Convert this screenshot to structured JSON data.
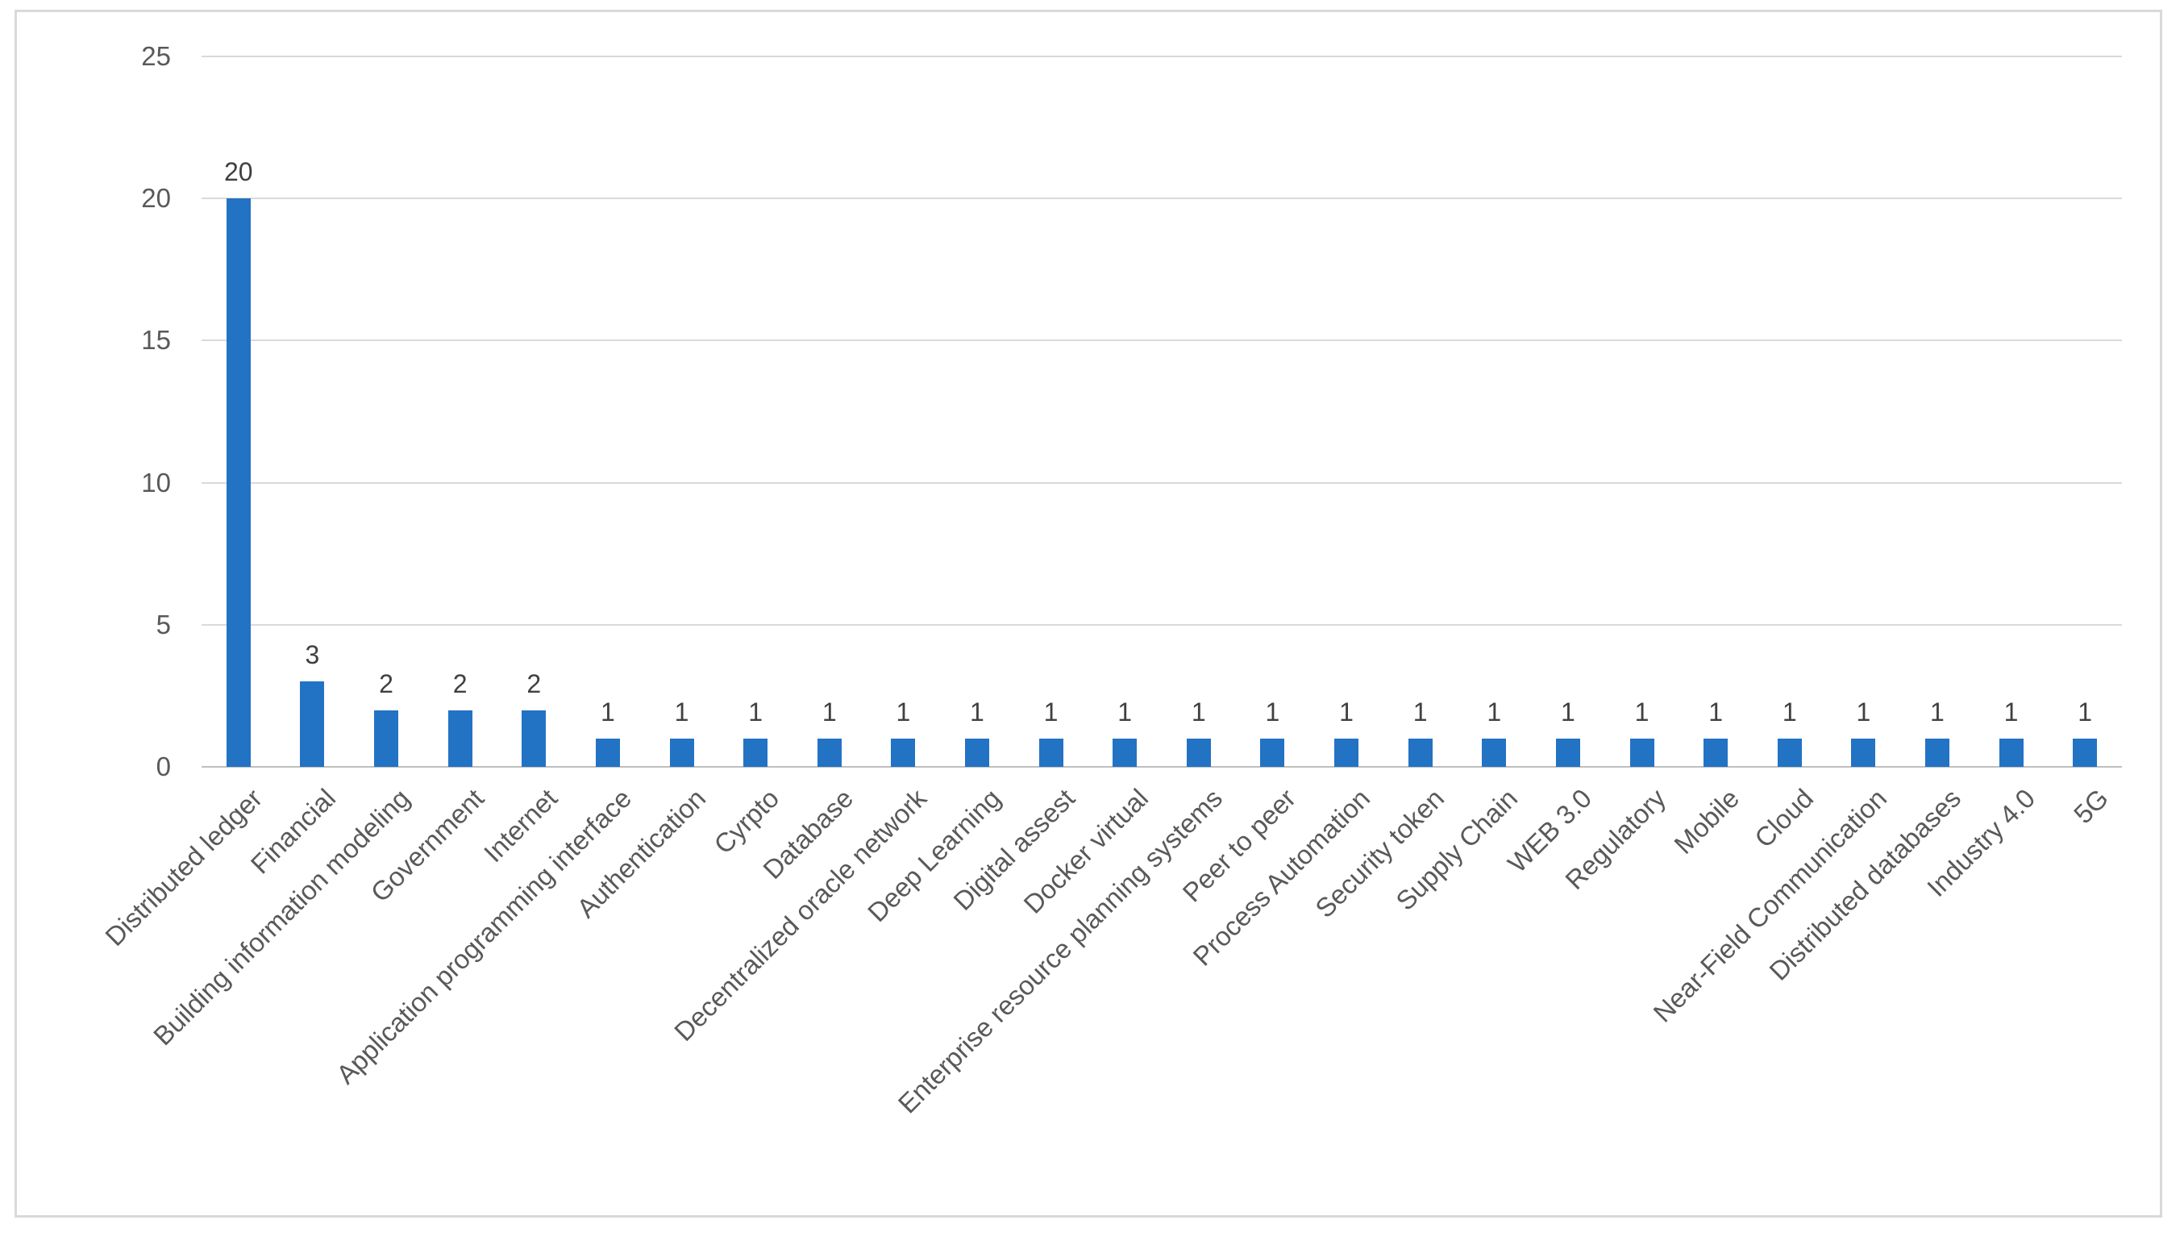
{
  "figure": {
    "background_color": "#ffffff",
    "border_color": "#d9d9d9"
  },
  "chart_data": {
    "type": "bar",
    "title": "",
    "xlabel": "",
    "ylabel": "",
    "legend": "none",
    "grid": true,
    "data_labels_shown": true,
    "ylim": [
      0,
      25
    ],
    "yticks": [
      0,
      5,
      10,
      15,
      20,
      25
    ],
    "bar_color": "#2273c4",
    "gridline_color": "#d9d9d9",
    "axis_line_color": "#bfbfbf",
    "tick_label_color": "#595959",
    "category_label_color": "#595959",
    "value_label_color": "#404040",
    "categories": [
      "Distributed ledger",
      "Financial",
      "Building information modeling",
      "Government",
      "Internet",
      "Application programming interface",
      "Authentication",
      "Cyrpto",
      "Database",
      "Decentralized oracle network",
      "Deep Learning",
      "Digital assest",
      "Docker virtual",
      "Enterprise resource planning systems",
      "Peer to peer",
      "Process Automation",
      "Security token",
      "Supply Chain",
      "WEB 3.0",
      "Regulatory",
      "Mobile",
      "Cloud",
      "Near-Field Communication",
      "Distributed databases",
      "Industry 4.0",
      "5G"
    ],
    "values": [
      20,
      3,
      2,
      2,
      2,
      1,
      1,
      1,
      1,
      1,
      1,
      1,
      1,
      1,
      1,
      1,
      1,
      1,
      1,
      1,
      1,
      1,
      1,
      1,
      1,
      1
    ]
  }
}
